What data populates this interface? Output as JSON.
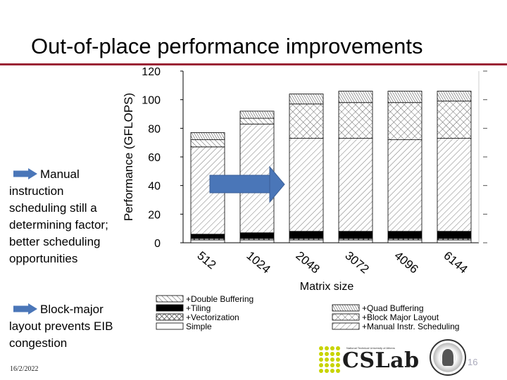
{
  "slide": {
    "title": "Out-of-place performance improvements",
    "date": "16/2/2022",
    "page_number": "16",
    "bullets": [
      "Manual instruction scheduling still a determining factor; better scheduling opportunities",
      "Block-major layout prevents EIB congestion"
    ],
    "logo_text": "CSLab",
    "logo_subtext": "National Technical University of Athens"
  },
  "colors": {
    "title_rule": "#9b2335",
    "arrow": "#4a76b8",
    "logo_dots": "#c8d400"
  },
  "chart_data": {
    "type": "bar",
    "stacked": true,
    "xlabel": "Matrix size",
    "ylabel": "Performance (GFLOPS)",
    "ylim": [
      0,
      120
    ],
    "yticks": [
      0,
      20,
      40,
      60,
      80,
      100,
      120
    ],
    "categories": [
      "512",
      "1024",
      "2048",
      "3072",
      "4096",
      "6144"
    ],
    "grid": false,
    "legend_position": "bottom",
    "series": [
      {
        "name": "Simple",
        "pattern": "plain",
        "values": [
          2,
          2,
          2,
          2,
          2,
          2
        ]
      },
      {
        "name": "+Vectorization",
        "pattern": "cross",
        "values": [
          1,
          1,
          1,
          1,
          1,
          1
        ]
      },
      {
        "name": "+Tiling",
        "pattern": "solid",
        "values": [
          3,
          4,
          5,
          5,
          5,
          5
        ]
      },
      {
        "name": "+Manual Instr. Scheduling",
        "pattern": "diagonal",
        "values": [
          61,
          76,
          65,
          65,
          64,
          65
        ]
      },
      {
        "name": "+Block Major Layout",
        "pattern": "crosshatch",
        "values": [
          0,
          0,
          24,
          25,
          26,
          26
        ]
      },
      {
        "name": "+Double Buffering",
        "pattern": "diagonal-light",
        "values": [
          5,
          4,
          0,
          0,
          0,
          0
        ]
      },
      {
        "name": "+Quad Buffering",
        "pattern": "dense",
        "values": [
          5,
          5,
          7,
          8,
          8,
          7
        ]
      }
    ]
  }
}
